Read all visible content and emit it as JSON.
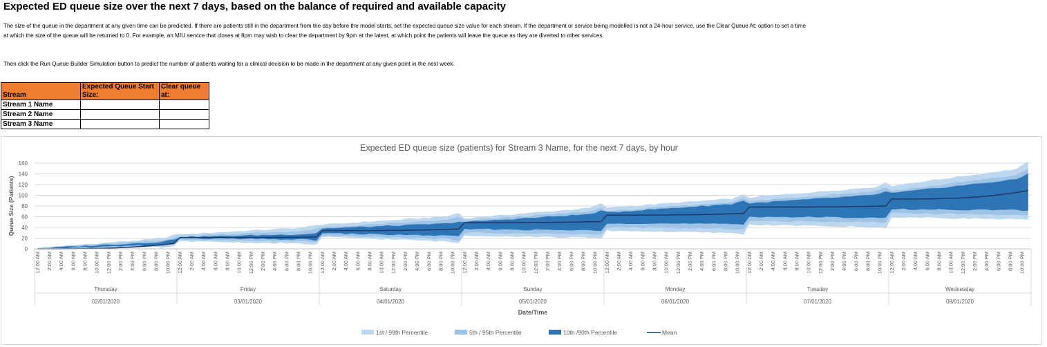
{
  "header": {
    "title": "Expected ED queue size over the next 7 days, based on the balance of required and available capacity",
    "paragraph1": "The size of the queue in the department at any given time can be predicted. If there are patients still in the department from the day before the model starts, set the expected queue size value for each stream. If the department or service being modelled is not a 24-hour service, use the Clear Queue At: option to set a time at which the size of the queue will be returned to 0. For example, an MIU service that closes at 8pm may wish to clear the department by 9pm at the latest, at which point the patients will leave the queue as they are diverted to other services.",
    "paragraph2": "Then click the Run Queue Builder Simulation button to predict the number of patients waiting for a clinical decision to be made in the department at any given point in the next week."
  },
  "stream_table": {
    "headers": [
      "Stream",
      "Expected Queue Start Size:",
      "Clear queue at:"
    ],
    "rows": [
      {
        "name": "Stream 1 Name",
        "start": "",
        "clear": ""
      },
      {
        "name": "Stream 2 Name",
        "start": "",
        "clear": ""
      },
      {
        "name": "Stream 3 Name",
        "start": "",
        "clear": ""
      }
    ]
  },
  "colors": {
    "header_fill": "#ed7d31",
    "p1_99": "#bdd7ee",
    "p5_95": "#9dc3e6",
    "p10_90": "#2e75b6",
    "mean": "#1f3864"
  },
  "chart_data": {
    "type": "area",
    "title": "Expected ED queue size (patients) for Stream 3 Name, for the next 7 days, by hour",
    "ylabel": "Queue Size (Patients)",
    "xlabel": "Date/Time",
    "ylim": [
      0,
      160
    ],
    "yticks": [
      0,
      20,
      40,
      60,
      80,
      100,
      120,
      140,
      160
    ],
    "grid": true,
    "legend_position": "bottom",
    "hour_labels": [
      "12:00 AM",
      "2:00 AM",
      "4:00 AM",
      "6:00 AM",
      "8:00 AM",
      "10:00 AM",
      "12:00 PM",
      "2:00 PM",
      "4:00 PM",
      "6:00 PM",
      "8:00 PM",
      "10:00 PM"
    ],
    "days": [
      {
        "day": "Thursday",
        "date": "02/01/2020"
      },
      {
        "day": "Friday",
        "date": "03/01/2020"
      },
      {
        "day": "Saturday",
        "date": "04/01/2020"
      },
      {
        "day": "Sunday",
        "date": "05/01/2020"
      },
      {
        "day": "Monday",
        "date": "06/01/2020"
      },
      {
        "day": "Tuesday",
        "date": "07/01/2020"
      },
      {
        "day": "Wednesday",
        "date": "08/01/2020"
      }
    ],
    "series": [
      {
        "name": "1st / 99th Percentile",
        "kind": "band",
        "day_start_low": [
          0,
          14,
          22,
          25,
          34,
          45,
          59
        ],
        "day_start_high": [
          2,
          27,
          45,
          57,
          77,
          96,
          118
        ],
        "day_end_low": [
          3,
          9,
          13,
          20,
          29,
          40,
          55
        ],
        "day_end_high": [
          21,
          41,
          62,
          78,
          95,
          117,
          152
        ]
      },
      {
        "name": "5th / 95th Percentile",
        "kind": "band",
        "day_start_low": [
          0,
          17,
          25,
          30,
          40,
          52,
          67
        ],
        "day_start_high": [
          1,
          24,
          40,
          53,
          70,
          89,
          108
        ],
        "day_end_low": [
          6,
          13,
          18,
          27,
          37,
          50,
          63
        ],
        "day_end_high": [
          17,
          34,
          55,
          71,
          89,
          109,
          140
        ]
      },
      {
        "name": "10th /90th Percentile",
        "kind": "band",
        "day_start_low": [
          0,
          20,
          29,
          37,
          48,
          60,
          74
        ],
        "day_start_high": [
          1,
          22,
          38,
          50,
          68,
          85,
          104
        ],
        "day_end_low": [
          8,
          17,
          24,
          34,
          46,
          58,
          72
        ],
        "day_end_high": [
          14,
          28,
          48,
          66,
          85,
          102,
          132
        ]
      },
      {
        "name": "Mean",
        "kind": "line",
        "day_start": [
          0,
          21,
          34,
          49,
          63,
          78,
          93
        ],
        "day_end": [
          10,
          22,
          37,
          51,
          66,
          80,
          109
        ]
      }
    ]
  }
}
